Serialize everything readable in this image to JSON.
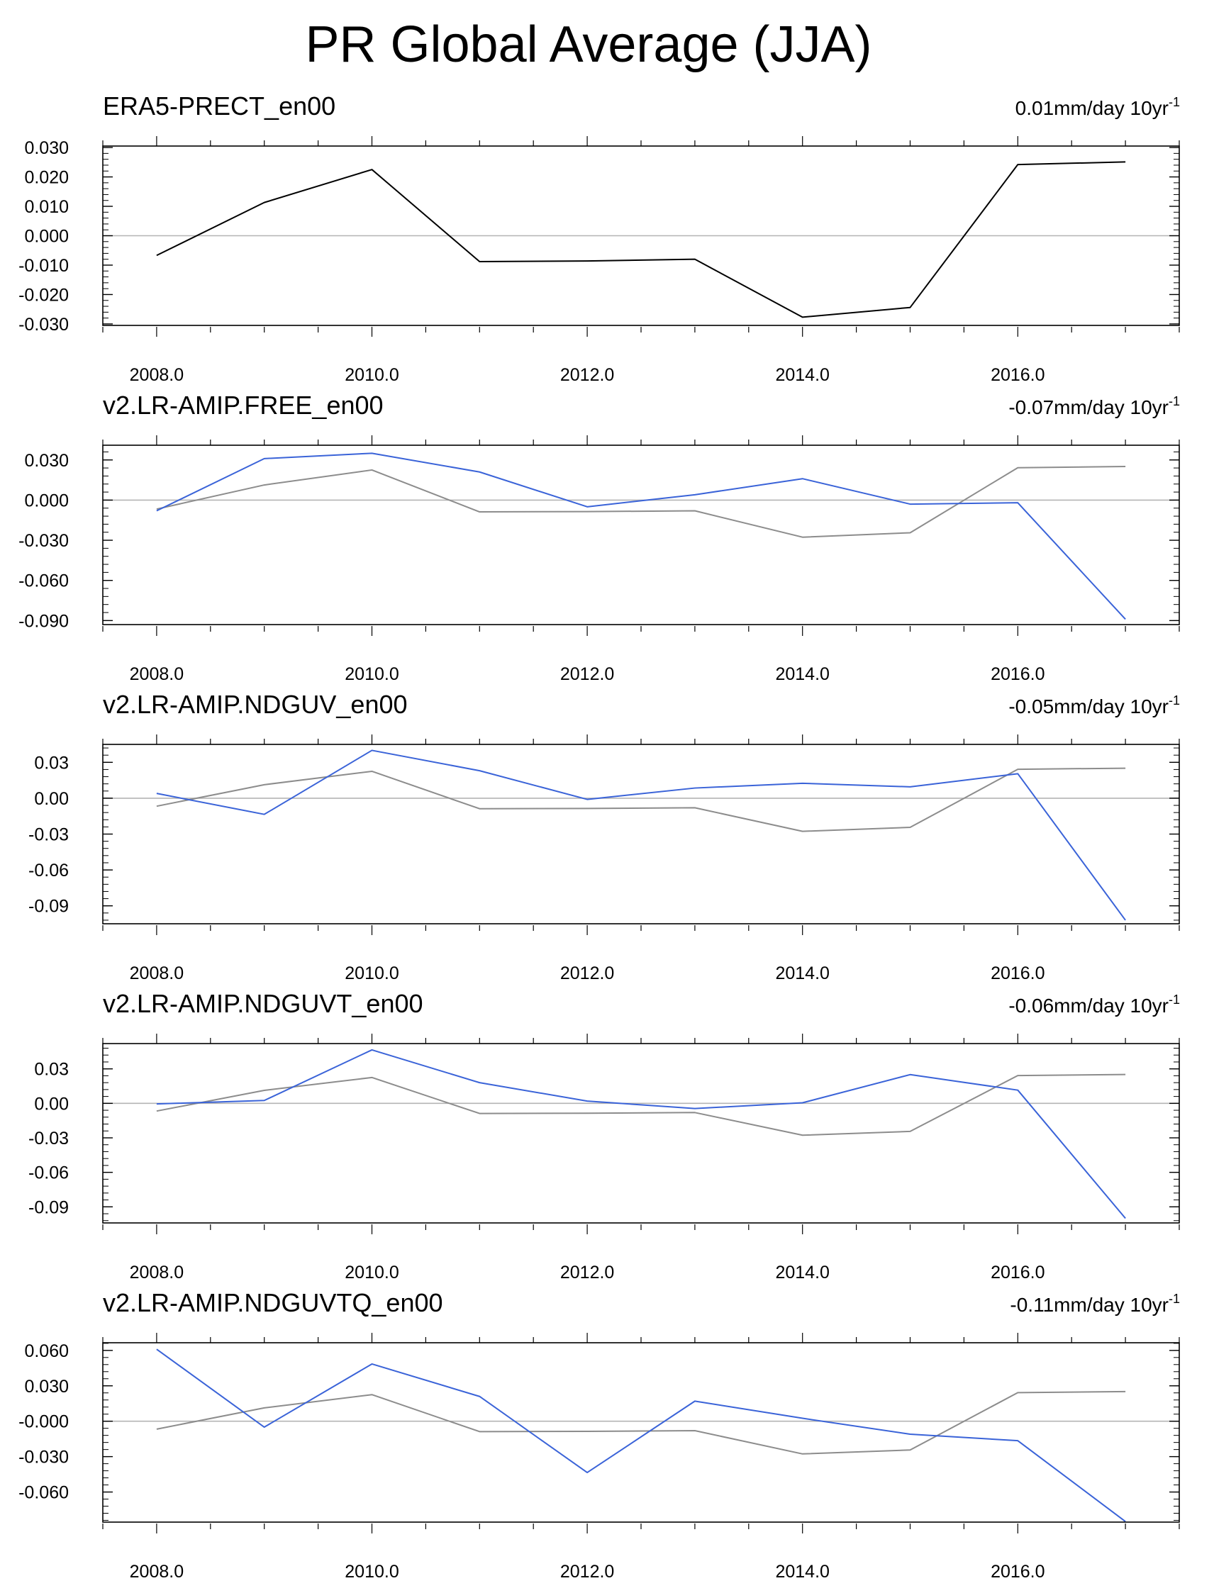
{
  "title": "PR Global Average (JJA)",
  "colors": {
    "reference": "#000000",
    "reference_overlay": "#8c8c8c",
    "model": "#3a63d8",
    "zero_line": "#b4b4b4",
    "frame": "#000000"
  },
  "chart_data": [
    {
      "type": "line",
      "title": "ERA5-PRECT_en00",
      "trend": {
        "value": "0.01",
        "unit": "mm/day 10yr",
        "exponent": "-1"
      },
      "x": [
        2008,
        2009,
        2010,
        2011,
        2012,
        2013,
        2014,
        2015,
        2016,
        2017
      ],
      "xticks": [
        "2008.0",
        "2010.0",
        "2012.0",
        "2014.0",
        "2016.0"
      ],
      "xlim": [
        2007.5,
        2017.5
      ],
      "yticks": [
        "0.030",
        "0.020",
        "0.010",
        "0.000",
        "-0.010",
        "-0.020",
        "-0.030"
      ],
      "ylim": [
        -0.0305,
        0.0305
      ],
      "reference_series": {
        "name": "ERA5-PRECT_en00",
        "values": [
          -0.0067,
          0.0113,
          0.0225,
          -0.0088,
          -0.0086,
          -0.008,
          -0.0277,
          -0.0244,
          0.0242,
          0.0251
        ]
      },
      "series": []
    },
    {
      "type": "line",
      "title": "v2.LR-AMIP.FREE_en00",
      "trend": {
        "value": "-0.07",
        "unit": "mm/day 10yr",
        "exponent": "-1"
      },
      "x": [
        2008,
        2009,
        2010,
        2011,
        2012,
        2013,
        2014,
        2015,
        2016,
        2017
      ],
      "xticks": [
        "2008.0",
        "2010.0",
        "2012.0",
        "2014.0",
        "2016.0"
      ],
      "xlim": [
        2007.5,
        2017.5
      ],
      "yticks": [
        "0.030",
        "0.000",
        "-0.030",
        "-0.060",
        "-0.090"
      ],
      "ylim": [
        -0.093,
        0.041
      ],
      "reference_series": {
        "name": "ERA5-PRECT_en00",
        "values": [
          -0.0067,
          0.0113,
          0.0225,
          -0.0088,
          -0.0086,
          -0.008,
          -0.0277,
          -0.0244,
          0.0242,
          0.0251
        ]
      },
      "series": [
        {
          "name": "v2.LR-AMIP.FREE_en00",
          "values": [
            -0.008,
            0.031,
            0.035,
            0.021,
            -0.005,
            0.004,
            0.016,
            -0.003,
            -0.002,
            -0.089
          ]
        }
      ]
    },
    {
      "type": "line",
      "title": "v2.LR-AMIP.NDGUV_en00",
      "trend": {
        "value": "-0.05",
        "unit": "mm/day 10yr",
        "exponent": "-1"
      },
      "x": [
        2008,
        2009,
        2010,
        2011,
        2012,
        2013,
        2014,
        2015,
        2016,
        2017
      ],
      "xticks": [
        "2008.0",
        "2010.0",
        "2012.0",
        "2014.0",
        "2016.0"
      ],
      "xlim": [
        2007.5,
        2017.5
      ],
      "yticks": [
        "0.03",
        "0.00",
        "-0.03",
        "-0.06",
        "-0.09"
      ],
      "ylim": [
        -0.105,
        0.045
      ],
      "reference_series": {
        "name": "ERA5-PRECT_en00",
        "values": [
          -0.0067,
          0.0113,
          0.0225,
          -0.0088,
          -0.0086,
          -0.008,
          -0.0277,
          -0.0244,
          0.0242,
          0.0251
        ]
      },
      "series": [
        {
          "name": "v2.LR-AMIP.NDGUV_en00",
          "values": [
            0.004,
            -0.0135,
            0.04,
            0.023,
            -0.001,
            0.0085,
            0.0125,
            0.0095,
            0.0205,
            -0.102
          ]
        }
      ]
    },
    {
      "type": "line",
      "title": "v2.LR-AMIP.NDGUVT_en00",
      "trend": {
        "value": "-0.06",
        "unit": "mm/day 10yr",
        "exponent": "-1"
      },
      "x": [
        2008,
        2009,
        2010,
        2011,
        2012,
        2013,
        2014,
        2015,
        2016,
        2017
      ],
      "xticks": [
        "2008.0",
        "2010.0",
        "2012.0",
        "2014.0",
        "2016.0"
      ],
      "xlim": [
        2007.5,
        2017.5
      ],
      "yticks": [
        "0.03",
        "0.00",
        "-0.03",
        "-0.06",
        "-0.09"
      ],
      "ylim": [
        -0.104,
        0.052
      ],
      "reference_series": {
        "name": "ERA5-PRECT_en00",
        "values": [
          -0.0067,
          0.0113,
          0.0225,
          -0.0088,
          -0.0086,
          -0.008,
          -0.0277,
          -0.0244,
          0.0242,
          0.0251
        ]
      },
      "series": [
        {
          "name": "v2.LR-AMIP.NDGUVT_en00",
          "values": [
            -0.0005,
            0.0025,
            0.0465,
            0.018,
            0.002,
            -0.0045,
            0.0005,
            0.025,
            0.0115,
            -0.1
          ]
        }
      ]
    },
    {
      "type": "line",
      "title": "v2.LR-AMIP.NDGUVTQ_en00",
      "trend": {
        "value": "-0.11",
        "unit": "mm/day 10yr",
        "exponent": "-1"
      },
      "x": [
        2008,
        2009,
        2010,
        2011,
        2012,
        2013,
        2014,
        2015,
        2016,
        2017
      ],
      "xticks": [
        "2008.0",
        "2010.0",
        "2012.0",
        "2014.0",
        "2016.0"
      ],
      "xlim": [
        2007.5,
        2017.5
      ],
      "yticks": [
        "0.060",
        "0.030",
        "-0.000",
        "-0.030",
        "-0.060"
      ],
      "ylim": [
        -0.0855,
        0.0665
      ],
      "reference_series": {
        "name": "ERA5-PRECT_en00",
        "values": [
          -0.0067,
          0.0113,
          0.0225,
          -0.0088,
          -0.0086,
          -0.008,
          -0.0277,
          -0.0244,
          0.0242,
          0.0251
        ]
      },
      "series": [
        {
          "name": "v2.LR-AMIP.NDGUVTQ_en00",
          "values": [
            0.061,
            -0.005,
            0.0485,
            0.021,
            -0.0435,
            0.017,
            0.0025,
            -0.011,
            -0.0165,
            -0.085
          ]
        }
      ]
    }
  ]
}
